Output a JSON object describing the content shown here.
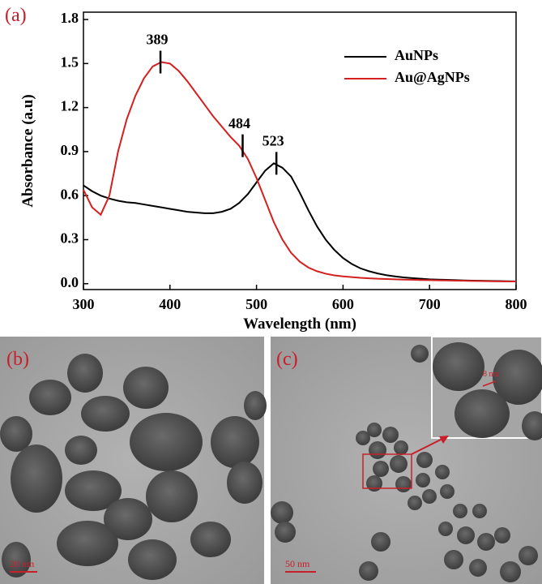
{
  "chart_data": {
    "type": "line",
    "panel_label": "(a)",
    "x_label": "Wavelength (nm)",
    "y_label": "Absorbance (a.u)",
    "x": [
      300,
      310,
      320,
      330,
      340,
      350,
      360,
      370,
      380,
      390,
      400,
      410,
      420,
      430,
      440,
      450,
      460,
      470,
      480,
      490,
      500,
      510,
      520,
      530,
      540,
      550,
      560,
      570,
      580,
      590,
      600,
      610,
      620,
      630,
      640,
      650,
      660,
      670,
      680,
      690,
      700,
      710,
      720,
      730,
      740,
      750,
      760,
      770,
      780,
      790,
      800
    ],
    "series": [
      {
        "name": "AuNPs",
        "color": "#000000",
        "values": [
          0.67,
          0.63,
          0.6,
          0.58,
          0.565,
          0.555,
          0.55,
          0.54,
          0.53,
          0.52,
          0.51,
          0.5,
          0.49,
          0.485,
          0.48,
          0.48,
          0.49,
          0.51,
          0.55,
          0.61,
          0.69,
          0.77,
          0.82,
          0.79,
          0.73,
          0.62,
          0.5,
          0.39,
          0.3,
          0.23,
          0.175,
          0.135,
          0.105,
          0.085,
          0.07,
          0.058,
          0.05,
          0.043,
          0.038,
          0.034,
          0.03,
          0.028,
          0.026,
          0.024,
          0.022,
          0.021,
          0.02,
          0.019,
          0.018,
          0.017,
          0.016
        ]
      },
      {
        "name": "Au@AgNPs",
        "color": "#d42020",
        "values": [
          0.64,
          0.52,
          0.47,
          0.6,
          0.9,
          1.12,
          1.28,
          1.4,
          1.48,
          1.51,
          1.5,
          1.45,
          1.38,
          1.3,
          1.22,
          1.14,
          1.07,
          1.0,
          0.94,
          0.85,
          0.72,
          0.57,
          0.42,
          0.3,
          0.21,
          0.15,
          0.11,
          0.085,
          0.068,
          0.057,
          0.05,
          0.045,
          0.04,
          0.037,
          0.034,
          0.032,
          0.03,
          0.028,
          0.027,
          0.025,
          0.024,
          0.023,
          0.022,
          0.021,
          0.02,
          0.019,
          0.018,
          0.017,
          0.016,
          0.015,
          0.015
        ]
      }
    ],
    "xlim": [
      300,
      800
    ],
    "xticks": [
      300,
      400,
      500,
      600,
      700,
      800
    ],
    "ylim": [
      -0.04,
      1.85
    ],
    "yticks": [
      {
        "value": 0,
        "label": "0.0"
      },
      0.3,
      0.6,
      0.9,
      1.2,
      1.5,
      1.8
    ],
    "grid": false,
    "legend": "upper right",
    "annotations": [
      {
        "text": "389",
        "x": 389,
        "y": 1.51
      },
      {
        "text": "484",
        "x": 484,
        "y": 0.94
      },
      {
        "text": "523",
        "x": 523,
        "y": 0.82
      }
    ]
  },
  "images": [
    {
      "label": "(b)",
      "scale_bar": "20 nm"
    },
    {
      "label": "(c)",
      "scale_bar": "50 nm",
      "inset_scale": "8 nm"
    }
  ]
}
